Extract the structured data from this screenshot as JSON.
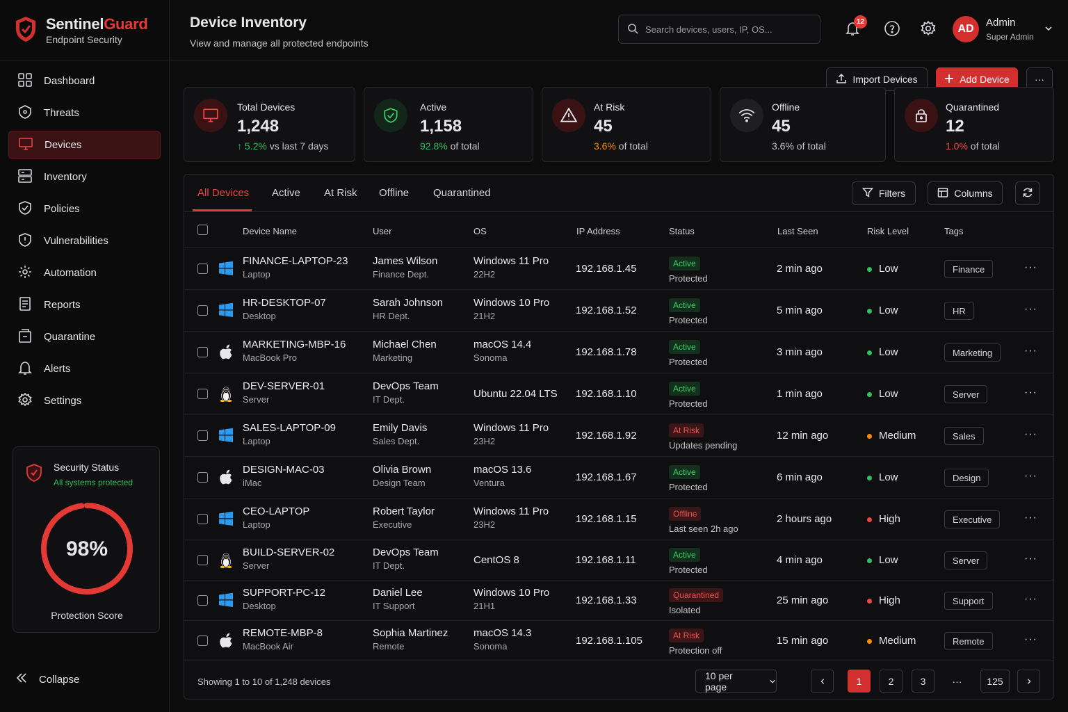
{
  "brand": {
    "name_part1": "Sentinel",
    "name_part2": "Guard",
    "subtitle": "Endpoint Security"
  },
  "sidebar": {
    "items": [
      {
        "label": "Dashboard",
        "icon": "grid-icon"
      },
      {
        "label": "Threats",
        "icon": "biohazard-icon"
      },
      {
        "label": "Devices",
        "icon": "monitor-icon",
        "active": true
      },
      {
        "label": "Inventory",
        "icon": "inventory-icon"
      },
      {
        "label": "Policies",
        "icon": "policy-shield-icon"
      },
      {
        "label": "Vulnerabilities",
        "icon": "vuln-shield-icon"
      },
      {
        "label": "Automation",
        "icon": "automation-gear-icon"
      },
      {
        "label": "Reports",
        "icon": "report-icon"
      },
      {
        "label": "Quarantine",
        "icon": "quarantine-box-icon"
      },
      {
        "label": "Alerts",
        "icon": "bell-icon"
      },
      {
        "label": "Settings",
        "icon": "gear-icon"
      }
    ],
    "security_status": {
      "title": "Security Status",
      "subtitle": "All systems protected",
      "score_text": "98%",
      "score": 0.98,
      "label": "Protection Score"
    },
    "collapse_label": "Collapse"
  },
  "header": {
    "title": "Device Inventory",
    "subtitle": "View and manage all protected endpoints",
    "search_placeholder": "Search devices, users, IP, OS...",
    "notification_count": "12",
    "user_initials": "AD",
    "user_name": "Admin",
    "user_role": "Super Admin"
  },
  "actions": {
    "import_label": "Import Devices",
    "add_label": "Add Device",
    "more_label": "···"
  },
  "stats": [
    {
      "label": "Total Devices",
      "value": "1,248",
      "highlight": "↑ 5.2%",
      "rest": " vs last 7 days",
      "color": "#2fbf5b"
    },
    {
      "label": "Active",
      "value": "1,158",
      "highlight": "92.8%",
      "rest": " of total",
      "color": "#2fbf5b"
    },
    {
      "label": "At Risk",
      "value": "45",
      "highlight": "3.6%",
      "rest": " of total",
      "color": "#ff8a00"
    },
    {
      "label": "Offline",
      "value": "45",
      "highlight": "3.6% of total",
      "rest": "",
      "color": "#c4c4c8"
    },
    {
      "label": "Quarantined",
      "value": "12",
      "highlight": "1.0%",
      "rest": " of total",
      "color": "#ef4444"
    }
  ],
  "tabs": [
    "All Devices",
    "Active",
    "At Risk",
    "Offline",
    "Quarantined"
  ],
  "toolbar": {
    "filters": "Filters",
    "columns": "Columns"
  },
  "columns": [
    "Device Name",
    "User",
    "OS",
    "IP Address",
    "Status",
    "Last Seen",
    "Risk Level",
    "Tags"
  ],
  "rows": [
    {
      "name": "FINANCE-LAPTOP-23",
      "type": "Laptop",
      "os_icon": "windows-icon",
      "user": "James Wilson",
      "dept": "Finance Dept.",
      "os": "Windows 11 Pro",
      "os_ver": "22H2",
      "ip": "192.168.1.45",
      "status": "Active",
      "status_kind": "active",
      "status_sub": "Protected",
      "seen": "2 min ago",
      "risk": "Low",
      "risk_color": "#2fbf5b",
      "tag": "Finance"
    },
    {
      "name": "HR-DESKTOP-07",
      "type": "Desktop",
      "os_icon": "windows-icon",
      "user": "Sarah Johnson",
      "dept": "HR Dept.",
      "os": "Windows 10 Pro",
      "os_ver": "21H2",
      "ip": "192.168.1.52",
      "status": "Active",
      "status_kind": "active",
      "status_sub": "Protected",
      "seen": "5 min ago",
      "risk": "Low",
      "risk_color": "#2fbf5b",
      "tag": "HR"
    },
    {
      "name": "MARKETING-MBP-16",
      "type": "MacBook Pro",
      "os_icon": "apple-icon",
      "user": "Michael Chen",
      "dept": "Marketing",
      "os": "macOS 14.4",
      "os_ver": "Sonoma",
      "ip": "192.168.1.78",
      "status": "Active",
      "status_kind": "active",
      "status_sub": "Protected",
      "seen": "3 min ago",
      "risk": "Low",
      "risk_color": "#2fbf5b",
      "tag": "Marketing"
    },
    {
      "name": "DEV-SERVER-01",
      "type": "Server",
      "os_icon": "linux-icon",
      "user": "DevOps Team",
      "dept": "IT Dept.",
      "os": "Ubuntu 22.04 LTS",
      "os_ver": "",
      "ip": "192.168.1.10",
      "status": "Active",
      "status_kind": "active",
      "status_sub": "Protected",
      "seen": "1 min ago",
      "risk": "Low",
      "risk_color": "#2fbf5b",
      "tag": "Server"
    },
    {
      "name": "SALES-LAPTOP-09",
      "type": "Laptop",
      "os_icon": "windows-icon",
      "user": "Emily Davis",
      "dept": "Sales Dept.",
      "os": "Windows 11 Pro",
      "os_ver": "23H2",
      "ip": "192.168.1.92",
      "status": "At Risk",
      "status_kind": "risk",
      "status_sub": "Updates pending",
      "seen": "12 min ago",
      "risk": "Medium",
      "risk_color": "#ff8a00",
      "tag": "Sales"
    },
    {
      "name": "DESIGN-MAC-03",
      "type": "iMac",
      "os_icon": "apple-icon",
      "user": "Olivia Brown",
      "dept": "Design Team",
      "os": "macOS 13.6",
      "os_ver": "Ventura",
      "ip": "192.168.1.67",
      "status": "Active",
      "status_kind": "active",
      "status_sub": "Protected",
      "seen": "6 min ago",
      "risk": "Low",
      "risk_color": "#2fbf5b",
      "tag": "Design"
    },
    {
      "name": "CEO-LAPTOP",
      "type": "Laptop",
      "os_icon": "windows-icon",
      "user": "Robert Taylor",
      "dept": "Executive",
      "os": "Windows 11 Pro",
      "os_ver": "23H2",
      "ip": "192.168.1.15",
      "status": "Offline",
      "status_kind": "off",
      "status_sub": "Last seen 2h ago",
      "seen": "2 hours ago",
      "risk": "High",
      "risk_color": "#ef4444",
      "tag": "Executive"
    },
    {
      "name": "BUILD-SERVER-02",
      "type": "Server",
      "os_icon": "linux-icon",
      "user": "DevOps Team",
      "dept": "IT Dept.",
      "os": "CentOS 8",
      "os_ver": "",
      "ip": "192.168.1.11",
      "status": "Active",
      "status_kind": "active",
      "status_sub": "Protected",
      "seen": "4 min ago",
      "risk": "Low",
      "risk_color": "#2fbf5b",
      "tag": "Server"
    },
    {
      "name": "SUPPORT-PC-12",
      "type": "Desktop",
      "os_icon": "windows-icon",
      "user": "Daniel Lee",
      "dept": "IT Support",
      "os": "Windows 10 Pro",
      "os_ver": "21H1",
      "ip": "192.168.1.33",
      "status": "Quarantined",
      "status_kind": "quar",
      "status_sub": "Isolated",
      "seen": "25 min ago",
      "risk": "High",
      "risk_color": "#ef4444",
      "tag": "Support"
    },
    {
      "name": "REMOTE-MBP-8",
      "type": "MacBook Air",
      "os_icon": "apple-icon",
      "user": "Sophia Martinez",
      "dept": "Remote",
      "os": "macOS 14.3",
      "os_ver": "Sonoma",
      "ip": "192.168.1.105",
      "status": "At Risk",
      "status_kind": "risk",
      "status_sub": "Protection off",
      "seen": "15 min ago",
      "risk": "Medium",
      "risk_color": "#ff8a00",
      "tag": "Remote"
    }
  ],
  "footer": {
    "showing": "Showing 1 to 10 of 1,248 devices",
    "per_page": "10 per page",
    "pages": [
      "1",
      "2",
      "3",
      "···",
      "125"
    ],
    "current_page": "1"
  }
}
